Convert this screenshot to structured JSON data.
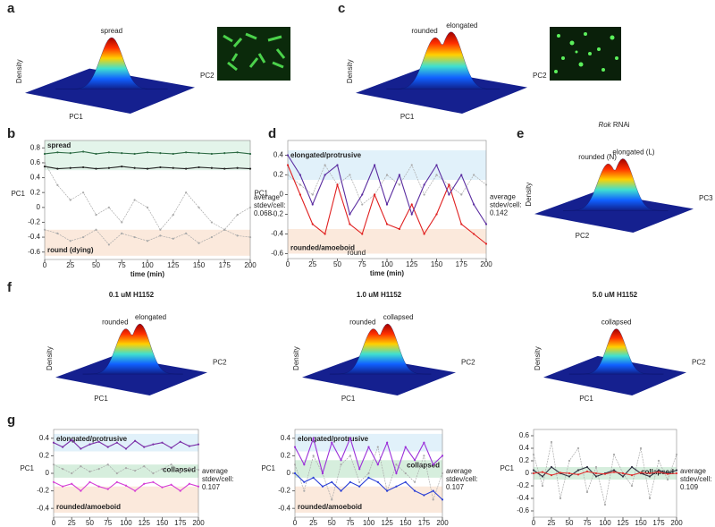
{
  "panel_labels": [
    "a",
    "b",
    "c",
    "d",
    "e",
    "f",
    "g"
  ],
  "surfaces": [
    {
      "peaks": [
        "spread"
      ],
      "axes": [
        "Density",
        "PC1",
        "PC2"
      ],
      "title": null
    },
    {
      "peaks": [
        "rounded",
        "elongated"
      ],
      "axes": [
        "Density",
        "PC1",
        "PC2"
      ],
      "title": null
    },
    {
      "peaks": [
        "rounded (N)",
        "elongated (L)"
      ],
      "axes": [
        "Density",
        "PC2",
        "PC3"
      ],
      "title": [
        "Rok",
        "RNAi"
      ]
    },
    {
      "peaks": [
        "rounded",
        "elongated"
      ],
      "axes": [
        "Density",
        "PC1",
        "PC2"
      ],
      "title": [
        "0.1 uM H1152"
      ]
    },
    {
      "peaks": [
        "rounded",
        "collapsed"
      ],
      "axes": [
        "Density",
        "PC1",
        "PC2"
      ],
      "title": [
        "1.0 uM H1152"
      ]
    },
    {
      "peaks": [
        "collapsed"
      ],
      "axes": [
        "Density",
        "PC1",
        "PC2"
      ],
      "title": [
        "5.0 uM H1152"
      ]
    }
  ],
  "chart_data": [
    {
      "type": "line",
      "ylabel": "PC1",
      "xlabel": "time (min)",
      "xlim": [
        0,
        200
      ],
      "ylim": [
        -0.7,
        0.9
      ],
      "xticks": [
        0,
        25,
        50,
        75,
        100,
        125,
        150,
        175,
        200
      ],
      "yticks": [
        0.8,
        0.6,
        0.4,
        0.2,
        0,
        -0.2,
        -0.4,
        -0.6
      ],
      "bands": [
        {
          "label": "spread",
          "range": [
            0.5,
            0.9
          ],
          "color": "#e3f4ea",
          "label_color": "#2e7d4f"
        },
        {
          "label": "round (dying)",
          "range": [
            -0.65,
            -0.3
          ],
          "color": "#fbe9dc",
          "label_color": "#e8902f"
        }
      ],
      "note": [
        "average",
        "stdev/cell:"
      ],
      "stdev": 0.068,
      "extra_label": null,
      "x": [
        0,
        12.5,
        25,
        37.5,
        50,
        62.5,
        75,
        87.5,
        100,
        112.5,
        125,
        137.5,
        150,
        162.5,
        175,
        187.5,
        200
      ],
      "series": [
        {
          "color": "#2e6b45",
          "values": [
            0.72,
            0.74,
            0.73,
            0.75,
            0.72,
            0.74,
            0.73,
            0.72,
            0.74,
            0.73,
            0.72,
            0.74,
            0.73,
            0.72,
            0.73,
            0.74,
            0.72
          ]
        },
        {
          "color": "#222222",
          "values": [
            0.55,
            0.52,
            0.53,
            0.54,
            0.52,
            0.53,
            0.55,
            0.53,
            0.52,
            0.54,
            0.53,
            0.52,
            0.54,
            0.53,
            0.52,
            0.53,
            0.52
          ]
        },
        {
          "color": "#aaaaaa",
          "values": [
            0.6,
            0.3,
            0.1,
            0.2,
            -0.1,
            0.0,
            -0.2,
            0.1,
            0.0,
            -0.3,
            -0.1,
            0.2,
            0.0,
            -0.2,
            -0.3,
            -0.1,
            0.0
          ]
        },
        {
          "color": "#aaaaaa",
          "values": [
            -0.3,
            -0.35,
            -0.45,
            -0.4,
            -0.3,
            -0.5,
            -0.35,
            -0.4,
            -0.45,
            -0.38,
            -0.42,
            -0.35,
            -0.48,
            -0.4,
            -0.3,
            -0.38,
            -0.4
          ]
        }
      ]
    },
    {
      "type": "line",
      "ylabel": "PC1",
      "xlabel": "time (min)",
      "xlim": [
        0,
        200
      ],
      "ylim": [
        -0.65,
        0.55
      ],
      "xticks": [
        0,
        25,
        50,
        75,
        100,
        125,
        150,
        175,
        200
      ],
      "yticks": [
        0.4,
        0.2,
        0,
        -0.2,
        -0.4,
        -0.6
      ],
      "bands": [
        {
          "label": "elongated/protrusive",
          "range": [
            0.15,
            0.45
          ],
          "color": "#e1f1fa",
          "label_color": "#2aa3dc"
        },
        {
          "label": "rounded/amoeboid",
          "range": [
            -0.6,
            -0.35
          ],
          "color": "#fbe9dc",
          "label_color": "#e8902f"
        }
      ],
      "note": [
        "average",
        "stdev/cell:"
      ],
      "stdev": 0.142,
      "extra_label": "round",
      "x": [
        0,
        12.5,
        25,
        37.5,
        50,
        62.5,
        75,
        87.5,
        100,
        112.5,
        125,
        137.5,
        150,
        162.5,
        175,
        187.5,
        200
      ],
      "series": [
        {
          "color": "#aaaaaa",
          "values": [
            0.2,
            0.1,
            0.0,
            0.3,
            0.1,
            0.2,
            -0.1,
            0.0,
            0.2,
            0.1,
            0.3,
            0.0,
            0.2,
            0.1,
            0.0,
            0.2,
            0.1
          ]
        },
        {
          "color": "#e02020",
          "values": [
            0.3,
            0.0,
            -0.3,
            -0.4,
            0.1,
            -0.3,
            -0.4,
            0.0,
            -0.3,
            -0.35,
            -0.1,
            -0.4,
            -0.2,
            0.1,
            -0.3,
            -0.4,
            -0.5
          ]
        },
        {
          "color": "#5a2ca0",
          "values": [
            0.4,
            0.2,
            -0.1,
            0.2,
            0.3,
            -0.2,
            0.0,
            0.3,
            -0.1,
            0.2,
            -0.2,
            0.1,
            0.3,
            0.0,
            0.2,
            -0.1,
            -0.3
          ]
        }
      ]
    },
    {
      "type": "line",
      "ylabel": "PC1",
      "xlabel": "time (min)",
      "xlim": [
        0,
        200
      ],
      "ylim": [
        -0.5,
        0.5
      ],
      "xticks": [
        0,
        25,
        50,
        75,
        100,
        125,
        150,
        175,
        200
      ],
      "yticks": [
        0.4,
        0.2,
        0,
        -0.2,
        -0.4
      ],
      "bands": [
        {
          "label": "elongated/protrusive",
          "range": [
            0.25,
            0.45
          ],
          "color": "#e1f1fa",
          "label_color": "#2aa3dc"
        },
        {
          "label": "collapsed",
          "range": [
            -0.05,
            0.1
          ],
          "color": "#d6eedd",
          "label_color": "#2e8b57"
        },
        {
          "label": "rounded/amoeboid",
          "range": [
            -0.45,
            -0.15
          ],
          "color": "#fbe9dc",
          "label_color": "#e8902f"
        }
      ],
      "note": [
        "average",
        "stdev/cell:"
      ],
      "stdev": 0.107,
      "extra_label": null,
      "x": [
        0,
        12.5,
        25,
        37.5,
        50,
        62.5,
        75,
        87.5,
        100,
        112.5,
        125,
        137.5,
        150,
        162.5,
        175,
        187.5,
        200
      ],
      "series": [
        {
          "color": "#aaaaaa",
          "values": [
            0.1,
            0.05,
            0.0,
            0.08,
            0.02,
            0.05,
            0.1,
            0.0,
            0.06,
            0.03,
            0.08,
            0.0,
            0.05,
            0.1,
            0.02,
            0.06,
            0.04
          ]
        },
        {
          "color": "#7b2fa8",
          "values": [
            0.35,
            0.3,
            0.38,
            0.28,
            0.33,
            0.36,
            0.3,
            0.35,
            0.28,
            0.37,
            0.3,
            0.33,
            0.35,
            0.29,
            0.36,
            0.31,
            0.33
          ]
        },
        {
          "color": "#d63fd6",
          "values": [
            -0.1,
            -0.15,
            -0.12,
            -0.2,
            -0.1,
            -0.15,
            -0.18,
            -0.1,
            -0.14,
            -0.2,
            -0.12,
            -0.1,
            -0.16,
            -0.13,
            -0.2,
            -0.12,
            -0.15
          ]
        }
      ]
    },
    {
      "type": "line",
      "ylabel": "PC1",
      "xlabel": "time (min)",
      "xlim": [
        0,
        200
      ],
      "ylim": [
        -0.5,
        0.5
      ],
      "xticks": [
        0,
        25,
        50,
        75,
        100,
        125,
        150,
        175,
        200
      ],
      "yticks": [
        0.4,
        0.2,
        0,
        -0.2,
        -0.4
      ],
      "bands": [
        {
          "label": "elongated/protrusive",
          "range": [
            0.25,
            0.45
          ],
          "color": "#e1f1fa",
          "label_color": "#2aa3dc"
        },
        {
          "label": "collapsed",
          "range": [
            -0.05,
            0.15
          ],
          "color": "#d6eedd",
          "label_color": "#2e8b57"
        },
        {
          "label": "rounded/amoeboid",
          "range": [
            -0.45,
            -0.15
          ],
          "color": "#fbe9dc",
          "label_color": "#e8902f"
        }
      ],
      "note": [
        "average",
        "stdev/cell:"
      ],
      "stdev": 0.107,
      "extra_label": null,
      "x": [
        0,
        12.5,
        25,
        37.5,
        50,
        62.5,
        75,
        87.5,
        100,
        112.5,
        125,
        137.5,
        150,
        162.5,
        175,
        187.5,
        200
      ],
      "series": [
        {
          "color": "#aaaaaa",
          "values": [
            0.1,
            -0.2,
            0.2,
            0.0,
            -0.3,
            0.1,
            0.2,
            -0.1,
            0.0,
            0.3,
            -0.2,
            0.1,
            0.0,
            -0.1,
            0.2,
            -0.3,
            0.0
          ]
        },
        {
          "color": "#9b30d9",
          "values": [
            0.3,
            0.1,
            0.4,
            0.0,
            0.35,
            0.15,
            0.4,
            0.05,
            0.3,
            0.1,
            0.35,
            0.0,
            0.3,
            0.15,
            0.35,
            0.1,
            0.2
          ]
        },
        {
          "color": "#2a3fd6",
          "values": [
            0.0,
            -0.1,
            -0.05,
            -0.15,
            -0.1,
            -0.2,
            -0.1,
            -0.15,
            -0.05,
            -0.1,
            -0.2,
            -0.15,
            -0.1,
            -0.2,
            -0.25,
            -0.2,
            -0.3
          ]
        }
      ]
    },
    {
      "type": "line",
      "ylabel": "PC1",
      "xlabel": "time (min)",
      "xlim": [
        0,
        200
      ],
      "ylim": [
        -0.7,
        0.7
      ],
      "xticks": [
        0,
        25,
        50,
        75,
        100,
        125,
        150,
        175,
        200
      ],
      "yticks": [
        0.6,
        0.4,
        0.2,
        0,
        -0.2,
        -0.4,
        -0.6
      ],
      "bands": [
        {
          "label": "collapsed",
          "range": [
            -0.1,
            0.1
          ],
          "color": "#d6eedd",
          "label_color": "#2e8b57"
        }
      ],
      "note": [
        "average",
        "stdev/cell:"
      ],
      "stdev": 0.109,
      "extra_label": null,
      "x": [
        0,
        12.5,
        25,
        37.5,
        50,
        62.5,
        75,
        87.5,
        100,
        112.5,
        125,
        137.5,
        150,
        162.5,
        175,
        187.5,
        200
      ],
      "series": [
        {
          "color": "#aaaaaa",
          "values": [
            0.3,
            -0.2,
            0.5,
            -0.4,
            0.2,
            0.4,
            -0.3,
            0.1,
            -0.5,
            0.3,
            0.0,
            -0.2,
            0.4,
            -0.4,
            0.2,
            -0.1,
            0.3
          ]
        },
        {
          "color": "#333344",
          "values": [
            0.05,
            -0.05,
            0.1,
            0.0,
            -0.05,
            0.05,
            0.1,
            -0.05,
            0.0,
            0.05,
            -0.05,
            0.1,
            0.0,
            -0.05,
            0.05,
            0.0,
            0.05
          ]
        },
        {
          "color": "#e03030",
          "values": [
            0.0,
            0.02,
            -0.03,
            0.01,
            0.0,
            -0.02,
            0.03,
            0.0,
            -0.01,
            0.02,
            0.0,
            -0.03,
            0.01,
            0.0,
            0.02,
            -0.01,
            0.0
          ]
        }
      ]
    }
  ]
}
